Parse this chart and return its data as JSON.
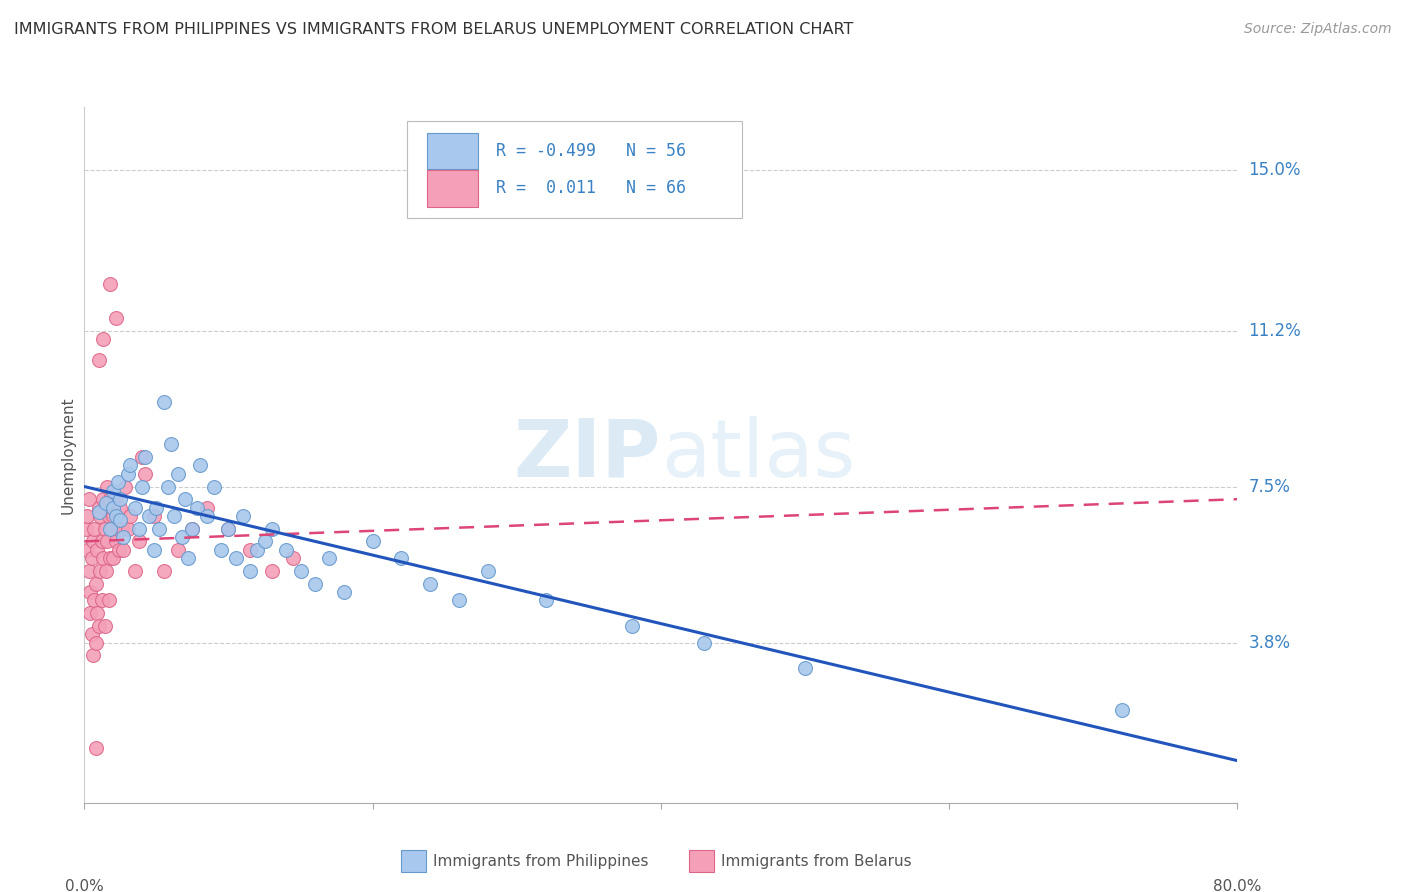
{
  "title": "IMMIGRANTS FROM PHILIPPINES VS IMMIGRANTS FROM BELARUS UNEMPLOYMENT CORRELATION CHART",
  "source": "Source: ZipAtlas.com",
  "ylabel": "Unemployment",
  "ytick_labels": [
    "15.0%",
    "11.2%",
    "7.5%",
    "3.8%"
  ],
  "ytick_values": [
    0.15,
    0.112,
    0.075,
    0.038
  ],
  "xlim": [
    0.0,
    0.8
  ],
  "ylim": [
    0.0,
    0.165
  ],
  "watermark": "ZIPatlas",
  "legend_blue_r": "-0.499",
  "legend_blue_n": "56",
  "legend_pink_r": "0.011",
  "legend_pink_n": "66",
  "blue_color": "#A8C8ED",
  "pink_color": "#F4A0B8",
  "trendline_blue_color": "#2255BB",
  "trendline_pink_color": "#DD4477",
  "blue_scatter_x": [
    0.01,
    0.015,
    0.018,
    0.02,
    0.02,
    0.022,
    0.023,
    0.025,
    0.025,
    0.027,
    0.03,
    0.032,
    0.035,
    0.038,
    0.04,
    0.042,
    0.045,
    0.048,
    0.05,
    0.052,
    0.055,
    0.058,
    0.06,
    0.062,
    0.065,
    0.068,
    0.07,
    0.072,
    0.075,
    0.078,
    0.08,
    0.085,
    0.09,
    0.095,
    0.1,
    0.105,
    0.11,
    0.115,
    0.12,
    0.125,
    0.13,
    0.14,
    0.15,
    0.16,
    0.17,
    0.18,
    0.2,
    0.22,
    0.24,
    0.26,
    0.28,
    0.32,
    0.38,
    0.43,
    0.5,
    0.72
  ],
  "blue_scatter_y": [
    0.069,
    0.071,
    0.065,
    0.07,
    0.074,
    0.068,
    0.076,
    0.072,
    0.067,
    0.063,
    0.078,
    0.08,
    0.07,
    0.065,
    0.075,
    0.082,
    0.068,
    0.06,
    0.07,
    0.065,
    0.095,
    0.075,
    0.085,
    0.068,
    0.078,
    0.063,
    0.072,
    0.058,
    0.065,
    0.07,
    0.08,
    0.068,
    0.075,
    0.06,
    0.065,
    0.058,
    0.068,
    0.055,
    0.06,
    0.062,
    0.065,
    0.06,
    0.055,
    0.052,
    0.058,
    0.05,
    0.062,
    0.058,
    0.052,
    0.048,
    0.055,
    0.048,
    0.042,
    0.038,
    0.032,
    0.022
  ],
  "pink_scatter_x": [
    0.001,
    0.002,
    0.002,
    0.003,
    0.003,
    0.004,
    0.004,
    0.005,
    0.005,
    0.006,
    0.006,
    0.007,
    0.007,
    0.008,
    0.008,
    0.009,
    0.009,
    0.01,
    0.01,
    0.011,
    0.011,
    0.012,
    0.012,
    0.013,
    0.013,
    0.014,
    0.014,
    0.015,
    0.015,
    0.016,
    0.016,
    0.017,
    0.017,
    0.018,
    0.018,
    0.019,
    0.02,
    0.02,
    0.021,
    0.022,
    0.023,
    0.024,
    0.025,
    0.026,
    0.027,
    0.028,
    0.03,
    0.032,
    0.035,
    0.038,
    0.042,
    0.048,
    0.055,
    0.065,
    0.075,
    0.085,
    0.1,
    0.115,
    0.13,
    0.145,
    0.04,
    0.022,
    0.018,
    0.01,
    0.013,
    0.008
  ],
  "pink_scatter_y": [
    0.065,
    0.068,
    0.06,
    0.055,
    0.072,
    0.05,
    0.045,
    0.04,
    0.058,
    0.035,
    0.062,
    0.048,
    0.065,
    0.052,
    0.038,
    0.045,
    0.06,
    0.07,
    0.042,
    0.055,
    0.068,
    0.048,
    0.062,
    0.072,
    0.058,
    0.065,
    0.042,
    0.07,
    0.055,
    0.075,
    0.062,
    0.068,
    0.048,
    0.072,
    0.058,
    0.065,
    0.068,
    0.058,
    0.072,
    0.062,
    0.065,
    0.06,
    0.07,
    0.065,
    0.06,
    0.075,
    0.065,
    0.068,
    0.055,
    0.062,
    0.078,
    0.068,
    0.055,
    0.06,
    0.065,
    0.07,
    0.065,
    0.06,
    0.055,
    0.058,
    0.082,
    0.115,
    0.123,
    0.105,
    0.11,
    0.013
  ],
  "blue_trend_x": [
    0.0,
    0.8
  ],
  "blue_trend_y": [
    0.075,
    0.01
  ],
  "pink_trend_x": [
    0.0,
    0.8
  ],
  "pink_trend_y": [
    0.062,
    0.072
  ]
}
